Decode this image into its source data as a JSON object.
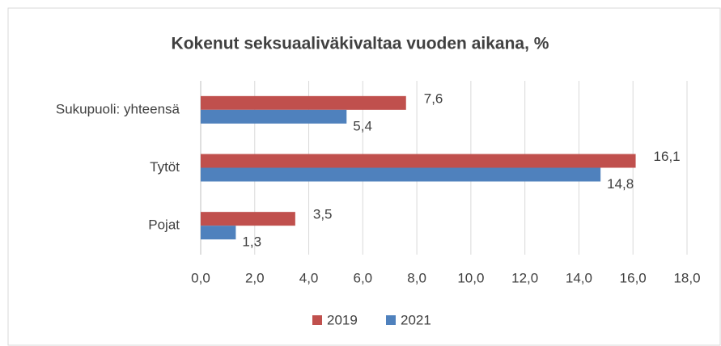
{
  "chart_data": {
    "type": "barh",
    "title": "Kokenut seksuaaliväkivaltaa vuoden aikana, %",
    "categories": [
      "Sukupuoli: yhteensä",
      "Tytöt",
      "Pojat"
    ],
    "series": [
      {
        "name": "2019",
        "color": "#c0504d",
        "values": [
          7.6,
          16.1,
          3.5
        ],
        "value_labels": [
          "7,6",
          "16,1",
          "3,5"
        ]
      },
      {
        "name": "2021",
        "color": "#4f81bd",
        "values": [
          5.4,
          14.8,
          1.3
        ],
        "value_labels": [
          "5,4",
          "14,8",
          "1,3"
        ]
      }
    ],
    "xlim": [
      0,
      18
    ],
    "xticks": [
      {
        "value": 0,
        "label": "0,0"
      },
      {
        "value": 2,
        "label": "2,0"
      },
      {
        "value": 4,
        "label": "4,0"
      },
      {
        "value": 6,
        "label": "6,0"
      },
      {
        "value": 8,
        "label": "8,0"
      },
      {
        "value": 10,
        "label": "10,0"
      },
      {
        "value": 12,
        "label": "12,0"
      },
      {
        "value": 14,
        "label": "14,0"
      },
      {
        "value": 16,
        "label": "16,0"
      },
      {
        "value": 18,
        "label": "18,0"
      }
    ],
    "grid": true,
    "legend": "bottom"
  }
}
